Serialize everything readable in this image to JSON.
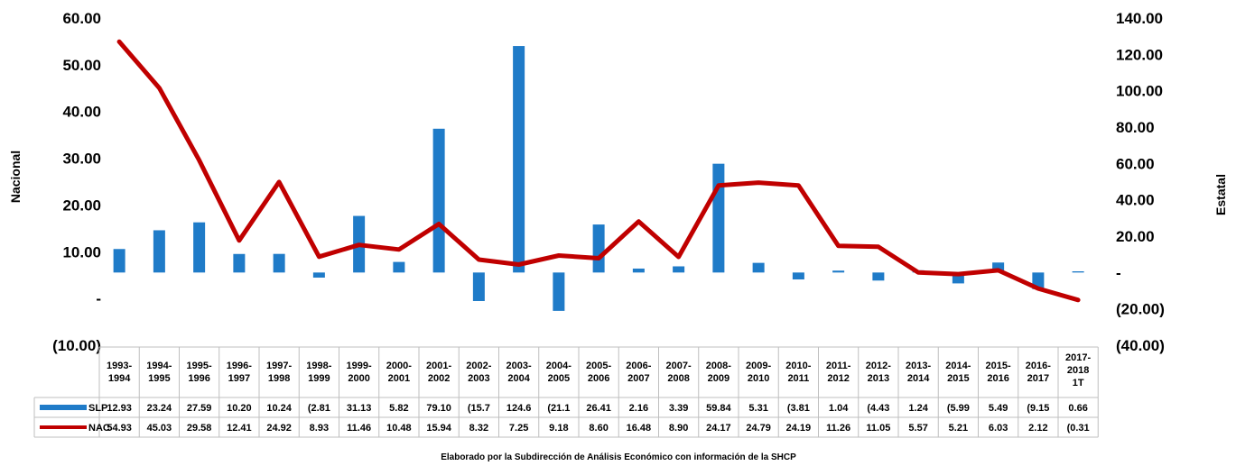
{
  "chart_data": {
    "type": "bar",
    "categories": [
      [
        "1993-",
        "1994"
      ],
      [
        "1994-",
        "1995"
      ],
      [
        "1995-",
        "1996"
      ],
      [
        "1996-",
        "1997"
      ],
      [
        "1997-",
        "1998"
      ],
      [
        "1998-",
        "1999"
      ],
      [
        "1999-",
        "2000"
      ],
      [
        "2000-",
        "2001"
      ],
      [
        "2001-",
        "2002"
      ],
      [
        "2002-",
        "2003"
      ],
      [
        "2003-",
        "2004"
      ],
      [
        "2004-",
        "2005"
      ],
      [
        "2005-",
        "2006"
      ],
      [
        "2006-",
        "2007"
      ],
      [
        "2007-",
        "2008"
      ],
      [
        "2008-",
        "2009"
      ],
      [
        "2009-",
        "2010"
      ],
      [
        "2010-",
        "2011"
      ],
      [
        "2011-",
        "2012"
      ],
      [
        "2012-",
        "2013"
      ],
      [
        "2013-",
        "2014"
      ],
      [
        "2014-",
        "2015"
      ],
      [
        "2015-",
        "2016"
      ],
      [
        "2016-",
        "2017"
      ],
      [
        "2017-",
        "2018",
        "1T"
      ]
    ],
    "series": [
      {
        "name": "SLP",
        "type": "bar",
        "axis": "right",
        "color": "#1f7bc8",
        "values": [
          12.93,
          23.24,
          27.59,
          10.2,
          10.24,
          -2.81,
          31.13,
          5.82,
          79.1,
          -15.7,
          124.6,
          -21.1,
          26.41,
          2.16,
          3.39,
          59.84,
          5.31,
          -3.81,
          1.04,
          -4.43,
          1.24,
          -5.99,
          5.49,
          -9.15,
          0.66
        ],
        "labels": [
          "12.93",
          "23.24",
          "27.59",
          "10.20",
          "10.24",
          "(2.81",
          "31.13",
          "5.82",
          "79.10",
          "(15.7",
          "124.6",
          "(21.1",
          "26.41",
          "2.16",
          "3.39",
          "59.84",
          "5.31",
          "(3.81",
          "1.04",
          "(4.43",
          "1.24",
          "(5.99",
          "5.49",
          "(9.15",
          "0.66"
        ]
      },
      {
        "name": "NAC",
        "type": "line",
        "axis": "left",
        "color": "#c00000",
        "values": [
          54.93,
          45.03,
          29.58,
          12.41,
          24.92,
          8.93,
          11.46,
          10.48,
          15.94,
          8.32,
          7.25,
          9.18,
          8.6,
          16.48,
          8.9,
          24.17,
          24.79,
          24.19,
          11.26,
          11.05,
          5.57,
          5.21,
          6.03,
          2.12,
          -0.31
        ],
        "labels": [
          "54.93",
          "45.03",
          "29.58",
          "12.41",
          "24.92",
          "8.93",
          "11.46",
          "10.48",
          "15.94",
          "8.32",
          "7.25",
          "9.18",
          "8.60",
          "16.48",
          "8.90",
          "24.17",
          "24.79",
          "24.19",
          "11.26",
          "11.05",
          "5.57",
          "5.21",
          "6.03",
          "2.12",
          "(0.31"
        ]
      }
    ],
    "left_axis": {
      "title": "Nacional",
      "ylim": [
        -10,
        60
      ],
      "tick_values": [
        60,
        50,
        40,
        30,
        20,
        10,
        0,
        -10
      ],
      "tick_labels": [
        "60.00",
        "50.00",
        "40.00",
        "30.00",
        "20.00",
        "10.00",
        "-",
        "(10.00)"
      ]
    },
    "right_axis": {
      "title": "Estatal",
      "ylim": [
        -40,
        140
      ],
      "tick_values": [
        140,
        120,
        100,
        80,
        60,
        40,
        20,
        0,
        -20,
        -40
      ],
      "tick_labels": [
        "140.00",
        "120.00",
        "100.00",
        "80.00",
        "60.00",
        "40.00",
        "20.00",
        "-",
        "(20.00)",
        "(40.00)"
      ]
    },
    "legend": "data-table",
    "grid": false,
    "source_note": "Elaborado por la Subdirección de Análisis Económico con información de la SHCP"
  }
}
